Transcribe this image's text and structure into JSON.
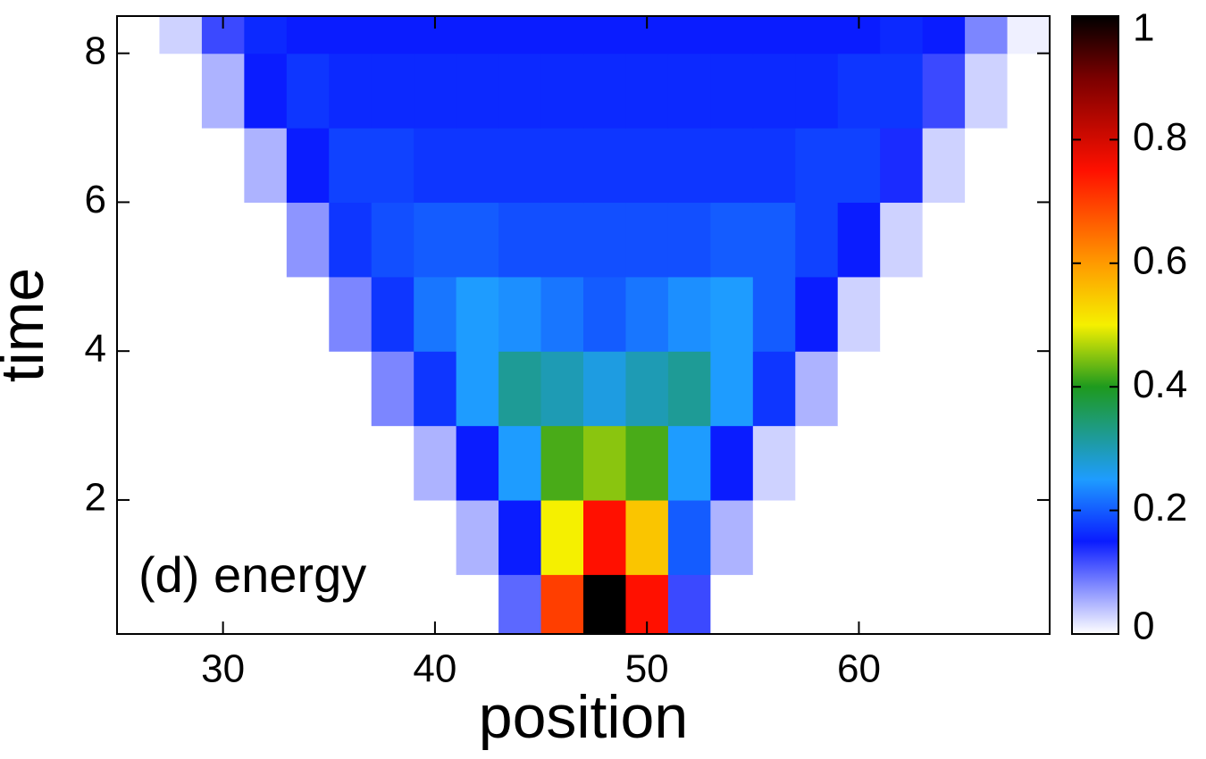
{
  "chart_data": {
    "type": "heatmap",
    "annotation": "(d) energy",
    "xlabel": "position",
    "ylabel": "time",
    "xlim": [
      25,
      69
    ],
    "ylim": [
      0.2,
      8.5
    ],
    "xticks": [
      30,
      40,
      50,
      60
    ],
    "yticks": [
      2,
      4,
      6,
      8
    ],
    "xbins": [
      25,
      27,
      29,
      31,
      33,
      35,
      37,
      39,
      41,
      43,
      45,
      47,
      49,
      51,
      53,
      55,
      57,
      59,
      61,
      63,
      65,
      67,
      69
    ],
    "ybins": [
      0.2,
      1,
      2,
      3,
      4,
      5,
      6,
      7,
      8,
      8.5
    ],
    "z": [
      [
        0,
        0,
        0,
        0,
        0,
        0,
        0,
        0,
        0,
        0.1,
        0.7,
        1,
        0.75,
        0.12,
        0,
        0,
        0,
        0,
        0,
        0,
        0,
        0
      ],
      [
        0,
        0,
        0,
        0,
        0,
        0,
        0,
        0,
        0.05,
        0.15,
        0.5,
        0.75,
        0.55,
        0.2,
        0.05,
        0,
        0,
        0,
        0,
        0,
        0,
        0
      ],
      [
        0,
        0,
        0,
        0,
        0,
        0,
        0,
        0.05,
        0.15,
        0.25,
        0.42,
        0.45,
        0.42,
        0.25,
        0.15,
        0.03,
        0,
        0,
        0,
        0,
        0,
        0
      ],
      [
        0,
        0,
        0,
        0,
        0,
        0,
        0.08,
        0.17,
        0.25,
        0.32,
        0.3,
        0.27,
        0.3,
        0.32,
        0.25,
        0.17,
        0.05,
        0,
        0,
        0,
        0,
        0
      ],
      [
        0,
        0,
        0,
        0,
        0,
        0.08,
        0.17,
        0.22,
        0.25,
        0.24,
        0.22,
        0.2,
        0.22,
        0.24,
        0.25,
        0.2,
        0.15,
        0.03,
        0,
        0,
        0,
        0
      ],
      [
        0,
        0,
        0,
        0,
        0.07,
        0.17,
        0.19,
        0.2,
        0.2,
        0.19,
        0.19,
        0.19,
        0.19,
        0.19,
        0.2,
        0.2,
        0.18,
        0.15,
        0.03,
        0,
        0,
        0
      ],
      [
        0,
        0,
        0,
        0.05,
        0.15,
        0.18,
        0.18,
        0.17,
        0.17,
        0.17,
        0.17,
        0.17,
        0.17,
        0.17,
        0.17,
        0.17,
        0.18,
        0.18,
        0.14,
        0.03,
        0,
        0
      ],
      [
        0,
        0,
        0.05,
        0.15,
        0.17,
        0.16,
        0.16,
        0.16,
        0.16,
        0.16,
        0.16,
        0.16,
        0.16,
        0.16,
        0.16,
        0.16,
        0.16,
        0.17,
        0.17,
        0.12,
        0.03,
        0
      ],
      [
        0,
        0.03,
        0.12,
        0.16,
        0.15,
        0.15,
        0.15,
        0.15,
        0.15,
        0.15,
        0.15,
        0.15,
        0.15,
        0.15,
        0.15,
        0.15,
        0.15,
        0.15,
        0.16,
        0.15,
        0.08,
        0.01
      ]
    ],
    "zlim": [
      0,
      1
    ],
    "zticks": [
      0,
      0.2,
      0.4,
      0.6,
      0.8,
      1
    ],
    "colorscale": [
      [
        0,
        "#ffffff"
      ],
      [
        0.15,
        "#0a1cff"
      ],
      [
        0.25,
        "#1e9cff"
      ],
      [
        0.4,
        "#1e9a1e"
      ],
      [
        0.5,
        "#f5f000"
      ],
      [
        0.6,
        "#ff9a00"
      ],
      [
        0.75,
        "#ff1000"
      ],
      [
        0.9,
        "#7a0000"
      ],
      [
        1,
        "#000000"
      ]
    ]
  }
}
